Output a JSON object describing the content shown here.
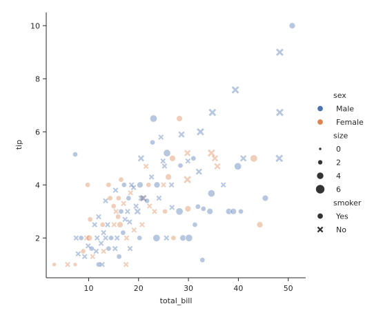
{
  "chart_data": {
    "type": "scatter",
    "xlabel": "total_bill",
    "ylabel": "tip",
    "xlim": [
      1.5,
      53.5
    ],
    "ylim": [
      0.5,
      10.5
    ],
    "xticks": [
      10,
      20,
      30,
      40,
      50
    ],
    "yticks": [
      2,
      4,
      6,
      8,
      10
    ],
    "grid": false,
    "legend_position": "right",
    "colors": {
      "Male": "#4c72b0",
      "Female": "#dd8452",
      "neutral": "#333333"
    },
    "legend": {
      "hue_title": "sex",
      "hue_entries": [
        {
          "label": "Male",
          "key": "Male"
        },
        {
          "label": "Female",
          "key": "Female"
        }
      ],
      "size_title": "size",
      "size_entries": [
        {
          "label": "0",
          "size": 0
        },
        {
          "label": "2",
          "size": 2
        },
        {
          "label": "4",
          "size": 4
        },
        {
          "label": "6",
          "size": 6
        }
      ],
      "style_title": "smoker",
      "style_entries": [
        {
          "label": "Yes",
          "marker": "circle"
        },
        {
          "label": "No",
          "marker": "x"
        }
      ]
    },
    "points": [
      {
        "x": 50.8,
        "y": 10.0,
        "sex": "Male",
        "smoker": "Yes",
        "size": 3
      },
      {
        "x": 48.3,
        "y": 9.0,
        "sex": "Male",
        "smoker": "No",
        "size": 4
      },
      {
        "x": 39.4,
        "y": 7.58,
        "sex": "Male",
        "smoker": "No",
        "size": 4
      },
      {
        "x": 34.8,
        "y": 6.73,
        "sex": "Male",
        "smoker": "No",
        "size": 4
      },
      {
        "x": 48.3,
        "y": 6.73,
        "sex": "Male",
        "smoker": "No",
        "size": 4
      },
      {
        "x": 32.4,
        "y": 6.0,
        "sex": "Male",
        "smoker": "No",
        "size": 4
      },
      {
        "x": 28.2,
        "y": 6.5,
        "sex": "Female",
        "smoker": "Yes",
        "size": 3
      },
      {
        "x": 23.0,
        "y": 6.5,
        "sex": "Male",
        "smoker": "Yes",
        "size": 4
      },
      {
        "x": 28.6,
        "y": 5.9,
        "sex": "Male",
        "smoker": "No",
        "size": 3
      },
      {
        "x": 24.5,
        "y": 5.8,
        "sex": "Male",
        "smoker": "No",
        "size": 2
      },
      {
        "x": 22.8,
        "y": 5.6,
        "sex": "Male",
        "smoker": "Yes",
        "size": 2
      },
      {
        "x": 25.7,
        "y": 5.2,
        "sex": "Male",
        "smoker": "Yes",
        "size": 4
      },
      {
        "x": 29.8,
        "y": 5.2,
        "sex": "Female",
        "smoker": "No",
        "size": 3
      },
      {
        "x": 34.6,
        "y": 5.2,
        "sex": "Female",
        "smoker": "No",
        "size": 4
      },
      {
        "x": 35.3,
        "y": 5.0,
        "sex": "Female",
        "smoker": "No",
        "size": 3
      },
      {
        "x": 31.0,
        "y": 5.0,
        "sex": "Male",
        "smoker": "Yes",
        "size": 2
      },
      {
        "x": 29.9,
        "y": 4.9,
        "sex": "Male",
        "smoker": "No",
        "size": 2
      },
      {
        "x": 7.3,
        "y": 5.15,
        "sex": "Male",
        "smoker": "Yes",
        "size": 2
      },
      {
        "x": 20.5,
        "y": 5.0,
        "sex": "Male",
        "smoker": "No",
        "size": 3
      },
      {
        "x": 26.8,
        "y": 5.0,
        "sex": "Female",
        "smoker": "Yes",
        "size": 3
      },
      {
        "x": 41.0,
        "y": 5.0,
        "sex": "Male",
        "smoker": "No",
        "size": 3
      },
      {
        "x": 43.1,
        "y": 5.0,
        "sex": "Female",
        "smoker": "Yes",
        "size": 4
      },
      {
        "x": 48.2,
        "y": 5.0,
        "sex": "Male",
        "smoker": "No",
        "size": 4
      },
      {
        "x": 24.9,
        "y": 4.9,
        "sex": "Male",
        "smoker": "No",
        "size": 2
      },
      {
        "x": 21.5,
        "y": 4.7,
        "sex": "Female",
        "smoker": "No",
        "size": 2
      },
      {
        "x": 39.9,
        "y": 4.7,
        "sex": "Male",
        "smoker": "Yes",
        "size": 4
      },
      {
        "x": 35.8,
        "y": 4.7,
        "sex": "Female",
        "smoker": "No",
        "size": 3
      },
      {
        "x": 25.2,
        "y": 4.71,
        "sex": "Male",
        "smoker": "No",
        "size": 2
      },
      {
        "x": 28.4,
        "y": 4.73,
        "sex": "Male",
        "smoker": "Yes",
        "size": 2
      },
      {
        "x": 32.1,
        "y": 4.5,
        "sex": "Male",
        "smoker": "No",
        "size": 3
      },
      {
        "x": 22.6,
        "y": 4.3,
        "sex": "Male",
        "smoker": "No",
        "size": 2
      },
      {
        "x": 26.0,
        "y": 4.3,
        "sex": "Female",
        "smoker": "Yes",
        "size": 3
      },
      {
        "x": 29.8,
        "y": 4.2,
        "sex": "Female",
        "smoker": "No",
        "size": 4
      },
      {
        "x": 16.5,
        "y": 4.2,
        "sex": "Female",
        "smoker": "Yes",
        "size": 2
      },
      {
        "x": 37.0,
        "y": 4.0,
        "sex": "Male",
        "smoker": "No",
        "size": 2
      },
      {
        "x": 9.8,
        "y": 4.0,
        "sex": "Female",
        "smoker": "Yes",
        "size": 2
      },
      {
        "x": 14.0,
        "y": 4.0,
        "sex": "Female",
        "smoker": "Yes",
        "size": 2
      },
      {
        "x": 17.1,
        "y": 4.0,
        "sex": "Male",
        "smoker": "Yes",
        "size": 2
      },
      {
        "x": 18.6,
        "y": 4.0,
        "sex": "Male",
        "smoker": "No",
        "size": 2
      },
      {
        "x": 20.3,
        "y": 4.0,
        "sex": "Male",
        "smoker": "Yes",
        "size": 3
      },
      {
        "x": 22.0,
        "y": 4.0,
        "sex": "Female",
        "smoker": "Yes",
        "size": 2
      },
      {
        "x": 23.7,
        "y": 4.0,
        "sex": "Male",
        "smoker": "Yes",
        "size": 3
      },
      {
        "x": 25.0,
        "y": 4.0,
        "sex": "Female",
        "smoker": "No",
        "size": 2
      },
      {
        "x": 26.6,
        "y": 4.0,
        "sex": "Male",
        "smoker": "No",
        "size": 2
      },
      {
        "x": 19.0,
        "y": 3.9,
        "sex": "Male",
        "smoker": "No",
        "size": 2
      },
      {
        "x": 15.4,
        "y": 3.8,
        "sex": "Male",
        "smoker": "No",
        "size": 2
      },
      {
        "x": 18.4,
        "y": 3.7,
        "sex": "Female",
        "smoker": "No",
        "size": 2
      },
      {
        "x": 34.6,
        "y": 3.68,
        "sex": "Male",
        "smoker": "Yes",
        "size": 4
      },
      {
        "x": 45.4,
        "y": 3.5,
        "sex": "Male",
        "smoker": "Yes",
        "size": 3
      },
      {
        "x": 16.0,
        "y": 3.5,
        "sex": "Female",
        "smoker": "Yes",
        "size": 2
      },
      {
        "x": 20.5,
        "y": 3.5,
        "sex": "Male",
        "smoker": "No",
        "size": 2
      },
      {
        "x": 21.0,
        "y": 3.5,
        "sex": "Female",
        "smoker": "No",
        "size": 3
      },
      {
        "x": 24.1,
        "y": 3.5,
        "sex": "Male",
        "smoker": "No",
        "size": 2
      },
      {
        "x": 18.0,
        "y": 3.5,
        "sex": "Male",
        "smoker": "Yes",
        "size": 2
      },
      {
        "x": 14.3,
        "y": 3.5,
        "sex": "Female",
        "smoker": "Yes",
        "size": 2
      },
      {
        "x": 13.4,
        "y": 3.4,
        "sex": "Male",
        "smoker": "No",
        "size": 2
      },
      {
        "x": 21.7,
        "y": 3.4,
        "sex": "Male",
        "smoker": "Yes",
        "size": 2
      },
      {
        "x": 17.0,
        "y": 3.3,
        "sex": "Female",
        "smoker": "No",
        "size": 2
      },
      {
        "x": 15.0,
        "y": 3.2,
        "sex": "Female",
        "smoker": "Yes",
        "size": 2
      },
      {
        "x": 19.5,
        "y": 3.2,
        "sex": "Male",
        "smoker": "No",
        "size": 2
      },
      {
        "x": 22.2,
        "y": 3.2,
        "sex": "Female",
        "smoker": "No",
        "size": 2
      },
      {
        "x": 26.7,
        "y": 3.15,
        "sex": "Male",
        "smoker": "No",
        "size": 2
      },
      {
        "x": 29.9,
        "y": 3.1,
        "sex": "Female",
        "smoker": "Yes",
        "size": 3
      },
      {
        "x": 31.9,
        "y": 3.18,
        "sex": "Male",
        "smoker": "Yes",
        "size": 2
      },
      {
        "x": 33.0,
        "y": 3.1,
        "sex": "Male",
        "smoker": "Yes",
        "size": 2
      },
      {
        "x": 16.5,
        "y": 3.0,
        "sex": "Male",
        "smoker": "Yes",
        "size": 2
      },
      {
        "x": 19.8,
        "y": 3.0,
        "sex": "Male",
        "smoker": "No",
        "size": 3
      },
      {
        "x": 23.2,
        "y": 3.0,
        "sex": "Female",
        "smoker": "No",
        "size": 2
      },
      {
        "x": 25.3,
        "y": 3.0,
        "sex": "Female",
        "smoker": "Yes",
        "size": 2
      },
      {
        "x": 28.2,
        "y": 3.0,
        "sex": "Male",
        "smoker": "Yes",
        "size": 4
      },
      {
        "x": 38.1,
        "y": 3.0,
        "sex": "Male",
        "smoker": "Yes",
        "size": 3
      },
      {
        "x": 39.0,
        "y": 3.0,
        "sex": "Male",
        "smoker": "Yes",
        "size": 3
      },
      {
        "x": 40.5,
        "y": 3.0,
        "sex": "Male",
        "smoker": "Yes",
        "size": 2
      },
      {
        "x": 34.3,
        "y": 3.0,
        "sex": "Male",
        "smoker": "Yes",
        "size": 3
      },
      {
        "x": 15.5,
        "y": 3.0,
        "sex": "Female",
        "smoker": "No",
        "size": 2
      },
      {
        "x": 17.8,
        "y": 3.0,
        "sex": "Male",
        "smoker": "No",
        "size": 2
      },
      {
        "x": 12.0,
        "y": 2.8,
        "sex": "Male",
        "smoker": "No",
        "size": 2
      },
      {
        "x": 17.3,
        "y": 2.7,
        "sex": "Male",
        "smoker": "No",
        "size": 2
      },
      {
        "x": 18.2,
        "y": 2.6,
        "sex": "Male",
        "smoker": "No",
        "size": 2
      },
      {
        "x": 10.3,
        "y": 2.7,
        "sex": "Female",
        "smoker": "Yes",
        "size": 2
      },
      {
        "x": 11.2,
        "y": 2.5,
        "sex": "Male",
        "smoker": "No",
        "size": 2
      },
      {
        "x": 12.8,
        "y": 2.5,
        "sex": "Female",
        "smoker": "Yes",
        "size": 2
      },
      {
        "x": 13.8,
        "y": 2.5,
        "sex": "Male",
        "smoker": "No",
        "size": 2
      },
      {
        "x": 15.1,
        "y": 2.5,
        "sex": "Female",
        "smoker": "No",
        "size": 2
      },
      {
        "x": 16.3,
        "y": 2.5,
        "sex": "Female",
        "smoker": "Yes",
        "size": 3
      },
      {
        "x": 20.7,
        "y": 2.5,
        "sex": "Female",
        "smoker": "No",
        "size": 2
      },
      {
        "x": 31.3,
        "y": 2.5,
        "sex": "Male",
        "smoker": "Yes",
        "size": 2
      },
      {
        "x": 44.3,
        "y": 2.5,
        "sex": "Female",
        "smoker": "Yes",
        "size": 3
      },
      {
        "x": 19.1,
        "y": 2.3,
        "sex": "Female",
        "smoker": "No",
        "size": 2
      },
      {
        "x": 13.0,
        "y": 2.2,
        "sex": "Male",
        "smoker": "No",
        "size": 2
      },
      {
        "x": 16.9,
        "y": 2.2,
        "sex": "Male",
        "smoker": "Yes",
        "size": 2
      },
      {
        "x": 9.6,
        "y": 2.0,
        "sex": "Female",
        "smoker": "No",
        "size": 2
      },
      {
        "x": 10.1,
        "y": 2.0,
        "sex": "Female",
        "smoker": "Yes",
        "size": 3
      },
      {
        "x": 11.7,
        "y": 2.0,
        "sex": "Male",
        "smoker": "No",
        "size": 2
      },
      {
        "x": 13.4,
        "y": 2.0,
        "sex": "Male",
        "smoker": "No",
        "size": 2
      },
      {
        "x": 14.5,
        "y": 2.0,
        "sex": "Male",
        "smoker": "Yes",
        "size": 2
      },
      {
        "x": 15.7,
        "y": 2.0,
        "sex": "Male",
        "smoker": "No",
        "size": 2
      },
      {
        "x": 17.6,
        "y": 2.0,
        "sex": "Female",
        "smoker": "No",
        "size": 2
      },
      {
        "x": 20.2,
        "y": 2.0,
        "sex": "Male",
        "smoker": "Yes",
        "size": 2
      },
      {
        "x": 23.6,
        "y": 2.0,
        "sex": "Male",
        "smoker": "Yes",
        "size": 4
      },
      {
        "x": 25.6,
        "y": 2.0,
        "sex": "Male",
        "smoker": "No",
        "size": 2
      },
      {
        "x": 27.0,
        "y": 2.0,
        "sex": "Female",
        "smoker": "Yes",
        "size": 2
      },
      {
        "x": 28.9,
        "y": 2.0,
        "sex": "Male",
        "smoker": "Yes",
        "size": 3
      },
      {
        "x": 30.1,
        "y": 2.0,
        "sex": "Male",
        "smoker": "Yes",
        "size": 4
      },
      {
        "x": 7.5,
        "y": 2.0,
        "sex": "Male",
        "smoker": "No",
        "size": 2
      },
      {
        "x": 8.5,
        "y": 2.0,
        "sex": "Male",
        "smoker": "Yes",
        "size": 2
      },
      {
        "x": 12.5,
        "y": 1.8,
        "sex": "Male",
        "smoker": "No",
        "size": 2
      },
      {
        "x": 10.6,
        "y": 1.6,
        "sex": "Male",
        "smoker": "Yes",
        "size": 2
      },
      {
        "x": 9.9,
        "y": 1.7,
        "sex": "Male",
        "smoker": "No",
        "size": 2
      },
      {
        "x": 11.5,
        "y": 1.5,
        "sex": "Male",
        "smoker": "No",
        "size": 2
      },
      {
        "x": 14.0,
        "y": 1.6,
        "sex": "Male",
        "smoker": "Yes",
        "size": 2
      },
      {
        "x": 15.3,
        "y": 1.6,
        "sex": "Male",
        "smoker": "No",
        "size": 2
      },
      {
        "x": 13.0,
        "y": 1.5,
        "sex": "Female",
        "smoker": "No",
        "size": 2
      },
      {
        "x": 18.3,
        "y": 1.6,
        "sex": "Male",
        "smoker": "No",
        "size": 2
      },
      {
        "x": 7.9,
        "y": 1.4,
        "sex": "Male",
        "smoker": "No",
        "size": 2
      },
      {
        "x": 9.2,
        "y": 1.3,
        "sex": "Male",
        "smoker": "No",
        "size": 2
      },
      {
        "x": 10.8,
        "y": 1.3,
        "sex": "Female",
        "smoker": "No",
        "size": 2
      },
      {
        "x": 16.1,
        "y": 1.3,
        "sex": "Male",
        "smoker": "Yes",
        "size": 2
      },
      {
        "x": 32.8,
        "y": 1.17,
        "sex": "Male",
        "smoker": "Yes",
        "size": 2
      },
      {
        "x": 12.0,
        "y": 1.0,
        "sex": "Male",
        "smoker": "Yes",
        "size": 2
      },
      {
        "x": 7.3,
        "y": 1.0,
        "sex": "Female",
        "smoker": "Yes",
        "size": 1
      },
      {
        "x": 5.8,
        "y": 1.0,
        "sex": "Female",
        "smoker": "No",
        "size": 2
      },
      {
        "x": 3.1,
        "y": 1.0,
        "sex": "Female",
        "smoker": "Yes",
        "size": 1
      },
      {
        "x": 12.7,
        "y": 1.0,
        "sex": "Male",
        "smoker": "No",
        "size": 2
      },
      {
        "x": 17.5,
        "y": 1.0,
        "sex": "Female",
        "smoker": "No",
        "size": 2
      },
      {
        "x": 8.9,
        "y": 1.5,
        "sex": "Female",
        "smoker": "Yes",
        "size": 2
      },
      {
        "x": 20.9,
        "y": 3.5,
        "sex": "Male",
        "smoker": "No",
        "size": 3
      },
      {
        "x": 15.9,
        "y": 2.8,
        "sex": "Female",
        "smoker": "Yes",
        "size": 2
      }
    ]
  }
}
